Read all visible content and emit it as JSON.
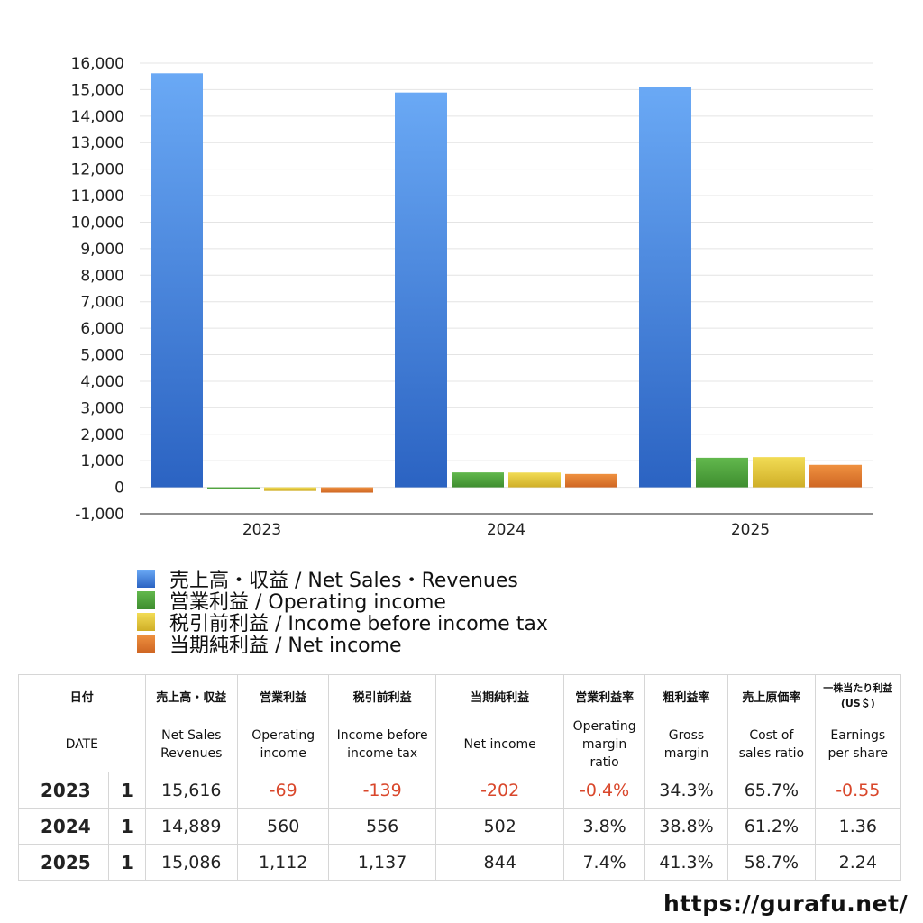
{
  "chart_data": {
    "type": "bar",
    "categories": [
      "2023",
      "2024",
      "2025"
    ],
    "ylim": [
      -1000,
      16000
    ],
    "yticks": [
      -1000,
      0,
      1000,
      2000,
      3000,
      4000,
      5000,
      6000,
      7000,
      8000,
      9000,
      10000,
      11000,
      12000,
      13000,
      14000,
      15000,
      16000
    ],
    "ytick_labels": [
      "-1,000",
      "0",
      "1,000",
      "2,000",
      "3,000",
      "4,000",
      "5,000",
      "6,000",
      "7,000",
      "8,000",
      "9,000",
      "10,000",
      "11,000",
      "12,000",
      "13,000",
      "14,000",
      "15,000",
      "16,000"
    ],
    "series": [
      {
        "name": "売上高・収益 / Net Sales・Revenues",
        "values": [
          15616,
          14889,
          15086
        ],
        "color": "#4a86e0"
      },
      {
        "name": "営業利益 / Operating income",
        "values": [
          -69,
          560,
          1112
        ],
        "color": "#4ea23d"
      },
      {
        "name": "税引前利益 / Income before income tax",
        "values": [
          -139,
          556,
          1137
        ],
        "color": "#e3c83a"
      },
      {
        "name": "当期純利益 / Net income",
        "values": [
          -202,
          502,
          844
        ],
        "color": "#e07b2e"
      }
    ]
  },
  "table": {
    "headers_jp": [
      "日付",
      "売上高・収益",
      "営業利益",
      "税引前利益",
      "当期純利益",
      "営業利益率",
      "粗利益率",
      "売上原価率",
      "一株当たり利益\n(US＄)"
    ],
    "headers_en": [
      "DATE",
      "Net Sales\nRevenues",
      "Operating\nincome",
      "Income before\nincome tax",
      "Net income",
      "Operating\nmargin\nratio",
      "Gross\nmargin",
      "Cost of\nsales ratio",
      "Earnings\nper share"
    ],
    "rows": [
      {
        "year": "2023",
        "q": "1",
        "cells": [
          "15,616",
          "-69",
          "-139",
          "-202",
          "-0.4%",
          "34.3%",
          "65.7%",
          "-0.55"
        ]
      },
      {
        "year": "2024",
        "q": "1",
        "cells": [
          "14,889",
          "560",
          "556",
          "502",
          "3.8%",
          "38.8%",
          "61.2%",
          "1.36"
        ]
      },
      {
        "year": "2025",
        "q": "1",
        "cells": [
          "15,086",
          "1,112",
          "1,137",
          "844",
          "7.4%",
          "41.3%",
          "58.7%",
          "2.24"
        ]
      }
    ]
  },
  "footer": {
    "site": "https://gurafu.net/"
  }
}
